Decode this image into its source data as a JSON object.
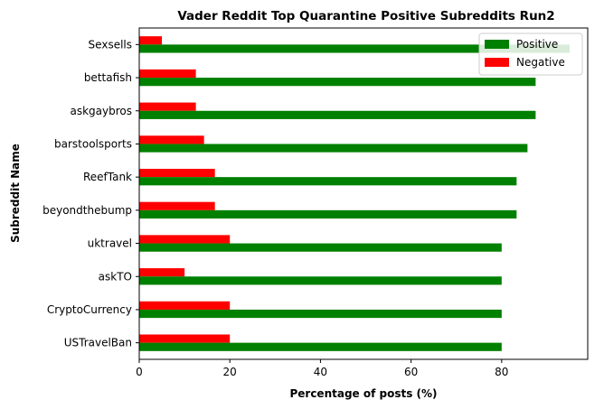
{
  "chart_data": {
    "type": "bar",
    "orientation": "horizontal",
    "title": "Vader Reddit Top Quarantine Positive Subreddits Run2",
    "xlabel": "Percentage of posts (%)",
    "ylabel": "Subreddit Name",
    "xlim": [
      0,
      99
    ],
    "xticks": [
      "0",
      "20",
      "40",
      "60",
      "80"
    ],
    "categories": [
      "USTravelBan",
      "CryptoCurrency",
      "askTO",
      "uktravel",
      "beyondthebump",
      "ReefTank",
      "barstoolsports",
      "askgaybros",
      "bettafish",
      "Sexsells"
    ],
    "series": [
      {
        "name": "Positive",
        "color": "#008000",
        "values": [
          80,
          80,
          80,
          80,
          83.3,
          83.3,
          85.7,
          87.5,
          87.5,
          95
        ]
      },
      {
        "name": "Negative",
        "color": "#ff0000",
        "values": [
          20,
          20,
          10,
          20,
          16.7,
          16.7,
          14.3,
          12.5,
          12.5,
          5
        ]
      }
    ],
    "legend_position": "top-right",
    "grid": false
  }
}
